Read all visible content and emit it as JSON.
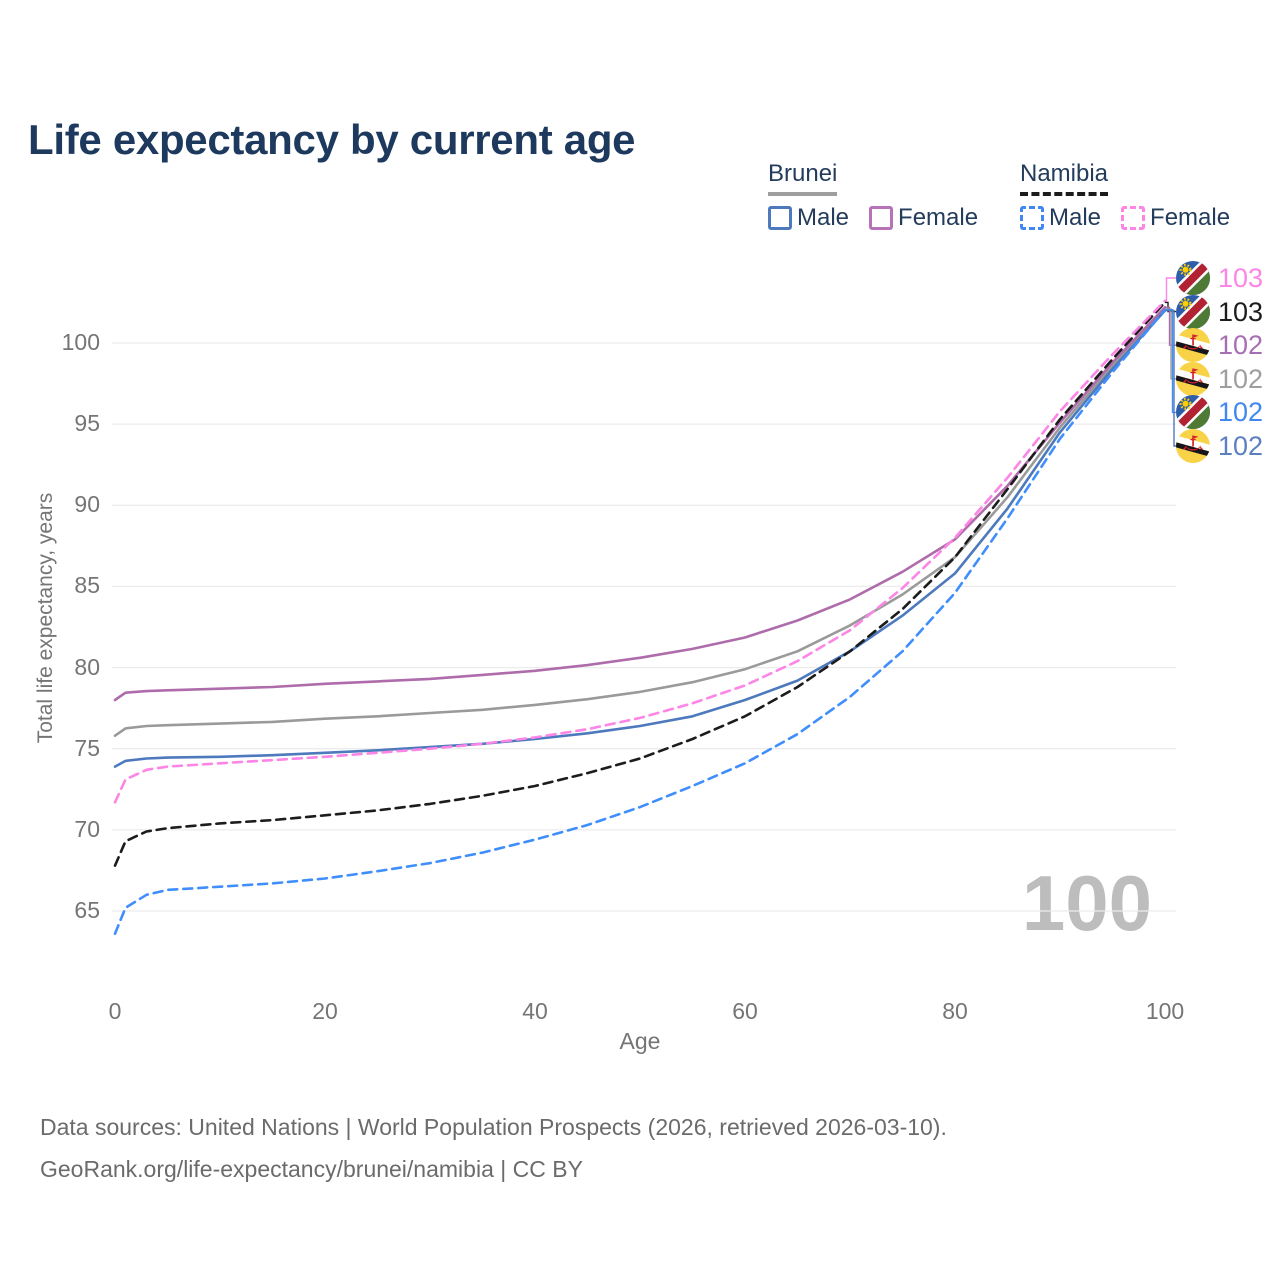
{
  "page": {
    "title": "Life expectancy by current age"
  },
  "legend": {
    "groups": [
      {
        "country": "Brunei",
        "line_style": "solid",
        "underline_color": "#9e9e9e",
        "items": [
          {
            "label": "Male",
            "color": "#4d79bd"
          },
          {
            "label": "Female",
            "color": "#b873b8"
          }
        ]
      },
      {
        "country": "Namibia",
        "line_style": "dashed",
        "underline_color": "#1c1c1c",
        "items": [
          {
            "label": "Male",
            "color": "#4187f0"
          },
          {
            "label": "Female",
            "color": "#fc85e6"
          }
        ]
      }
    ]
  },
  "watermark": "100",
  "footer": {
    "line1": "Data sources: United Nations | World Population Prospects (2026, retrieved 2026-03-10).",
    "line2": "GeoRank.org/life-expectancy/brunei/namibia | CC BY"
  },
  "end_labels": [
    {
      "series": "namibia_female",
      "country": "Namibia",
      "value": "103",
      "color": "#fc85e6"
    },
    {
      "series": "namibia_total",
      "country": "Namibia",
      "value": "103",
      "color": "#1c1c1c"
    },
    {
      "series": "brunei_female",
      "country": "Brunei",
      "value": "102",
      "color": "#a76fb3"
    },
    {
      "series": "brunei_total",
      "country": "Brunei",
      "value": "102",
      "color": "#9e9e9e"
    },
    {
      "series": "namibia_male",
      "country": "Namibia",
      "value": "102",
      "color": "#4187f0"
    },
    {
      "series": "brunei_male",
      "country": "Brunei",
      "value": "102",
      "color": "#5b80c2"
    }
  ],
  "chart_data": {
    "type": "line",
    "title": "Life expectancy by current age",
    "xlabel": "Age",
    "ylabel": "Total life expectancy, years",
    "x_ticks": [
      0,
      20,
      40,
      60,
      80,
      100
    ],
    "y_ticks": [
      65,
      70,
      75,
      80,
      85,
      90,
      95,
      100
    ],
    "xlim": [
      0,
      100
    ],
    "ylim": [
      62.5,
      104
    ],
    "grid": "horizontal",
    "legend_position": "top-right",
    "ages": [
      0,
      1,
      3,
      5,
      10,
      15,
      20,
      25,
      30,
      35,
      40,
      45,
      50,
      55,
      60,
      65,
      70,
      75,
      80,
      85,
      90,
      95,
      100
    ],
    "series": [
      {
        "id": "brunei_total",
        "name": "Brunei Total",
        "color": "#9a9a9a",
        "style": "solid",
        "values": [
          75.8,
          76.25,
          76.4,
          76.45,
          76.55,
          76.65,
          76.85,
          77.0,
          77.2,
          77.4,
          77.7,
          78.05,
          78.5,
          79.1,
          79.9,
          81.0,
          82.6,
          84.5,
          86.8,
          90.5,
          94.8,
          98.6,
          102.1
        ]
      },
      {
        "id": "brunei_female",
        "name": "Brunei Female",
        "color": "#af6cab",
        "style": "solid",
        "values": [
          78.0,
          78.45,
          78.55,
          78.6,
          78.7,
          78.8,
          79.0,
          79.15,
          79.3,
          79.55,
          79.8,
          80.15,
          80.6,
          81.15,
          81.85,
          82.9,
          84.2,
          85.9,
          87.9,
          91.2,
          95.1,
          98.8,
          102.2
        ]
      },
      {
        "id": "brunei_male",
        "name": "Brunei Male",
        "color": "#4d79bd",
        "style": "solid",
        "values": [
          73.9,
          74.25,
          74.4,
          74.45,
          74.5,
          74.6,
          74.75,
          74.9,
          75.1,
          75.3,
          75.6,
          75.95,
          76.4,
          77.0,
          78.0,
          79.2,
          81.0,
          83.2,
          85.8,
          89.8,
          94.5,
          98.4,
          102.0
        ]
      },
      {
        "id": "namibia_total",
        "name": "Namibia Total",
        "color": "#1c1c1c",
        "style": "dashed",
        "values": [
          67.8,
          69.3,
          69.9,
          70.1,
          70.4,
          70.6,
          70.9,
          71.2,
          71.6,
          72.1,
          72.7,
          73.5,
          74.4,
          75.6,
          77.0,
          78.8,
          81.0,
          83.6,
          86.8,
          91.0,
          95.3,
          99.0,
          102.5
        ]
      },
      {
        "id": "namibia_female",
        "name": "Namibia Female",
        "color": "#fc85e6",
        "style": "dashed",
        "values": [
          71.7,
          73.1,
          73.7,
          73.9,
          74.1,
          74.3,
          74.5,
          74.75,
          75.0,
          75.3,
          75.7,
          76.2,
          76.9,
          77.8,
          78.9,
          80.4,
          82.3,
          84.9,
          88.0,
          91.7,
          95.8,
          99.3,
          102.6
        ]
      },
      {
        "id": "namibia_male",
        "name": "Namibia Male",
        "color": "#3f8efc",
        "style": "dashed",
        "values": [
          63.6,
          65.2,
          66.0,
          66.3,
          66.5,
          66.7,
          67.0,
          67.45,
          67.95,
          68.6,
          69.4,
          70.3,
          71.4,
          72.7,
          74.1,
          75.9,
          78.2,
          81.0,
          84.6,
          89.2,
          94.1,
          98.2,
          102.05
        ]
      }
    ]
  }
}
